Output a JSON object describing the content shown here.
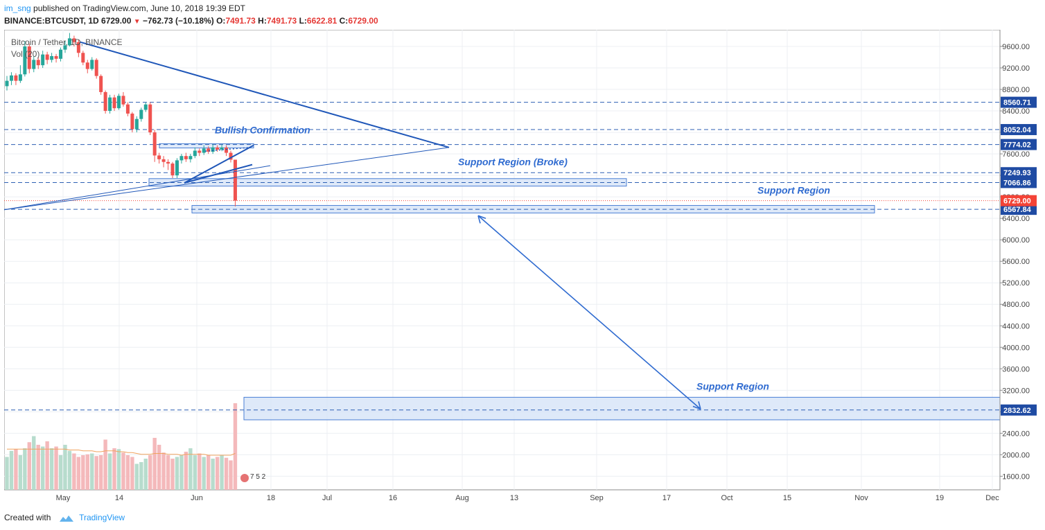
{
  "header": {
    "user": "im_sng",
    "published_text": "published on TradingView.com, June 10, 2018 19:39 EDT",
    "symbol": "BINANCE:BTCUSDT, 1D",
    "last": "6729.00",
    "change": "−762.73 (−10.18%)",
    "open_label": "O:",
    "open": "7491.73",
    "high_label": "H:",
    "high": "7491.73",
    "low_label": "L:",
    "low": "6622.81",
    "close_label": "C:",
    "close": "6729.00"
  },
  "legend": {
    "series": "Bitcoin / Tether, 1D, BINANCE",
    "volume": "Vol (20)"
  },
  "footer": {
    "created_with": "Created with",
    "brand": "TradingView"
  },
  "colors": {
    "up": "#26a69a",
    "down": "#ef5350",
    "vol_up": "#b7dccd",
    "vol_down": "#f4b9bb",
    "line": "#1e56b8",
    "annotation": "#2f6bd0",
    "zone_fill": "#d6e4f8",
    "zone_stroke": "#4a7fd4",
    "ma": "#f0a35e",
    "price_tag": "#f44336"
  },
  "chart_data": {
    "type": "candlestick",
    "title": "Bitcoin / Tether, 1D, BINANCE",
    "ylim": [
      1400,
      9900
    ],
    "y_ticks": [
      1600,
      2000,
      2400,
      2800,
      3200,
      3600,
      4000,
      4400,
      4800,
      5200,
      5600,
      6000,
      6400,
      6800,
      7200,
      7600,
      8000,
      8400,
      8800,
      9200,
      9600
    ],
    "x_ticks": [
      "May",
      "14",
      "Jun",
      "18",
      "Jul",
      "16",
      "Aug",
      "13",
      "Sep",
      "17",
      "Oct",
      "15",
      "Nov",
      "19",
      "Dec"
    ],
    "candles": [
      {
        "o": 8860,
        "c": 8960,
        "h": 9050,
        "l": 8780
      },
      {
        "o": 8960,
        "c": 9060,
        "h": 9120,
        "l": 8880
      },
      {
        "o": 9060,
        "c": 8960,
        "h": 9100,
        "l": 8880
      },
      {
        "o": 8960,
        "c": 9080,
        "h": 9250,
        "l": 8920
      },
      {
        "o": 9080,
        "c": 9600,
        "h": 9700,
        "l": 9040
      },
      {
        "o": 9600,
        "c": 9180,
        "h": 9650,
        "l": 9100
      },
      {
        "o": 9180,
        "c": 9350,
        "h": 9420,
        "l": 9120
      },
      {
        "o": 9350,
        "c": 9250,
        "h": 9400,
        "l": 9180
      },
      {
        "o": 9250,
        "c": 9450,
        "h": 9520,
        "l": 9200
      },
      {
        "o": 9450,
        "c": 9350,
        "h": 9500,
        "l": 9270
      },
      {
        "o": 9350,
        "c": 9420,
        "h": 9480,
        "l": 9300
      },
      {
        "o": 9420,
        "c": 9370,
        "h": 9460,
        "l": 9300
      },
      {
        "o": 9370,
        "c": 9540,
        "h": 9580,
        "l": 9320
      },
      {
        "o": 9540,
        "c": 9620,
        "h": 9700,
        "l": 9480
      },
      {
        "o": 9620,
        "c": 9750,
        "h": 9850,
        "l": 9600
      },
      {
        "o": 9750,
        "c": 9680,
        "h": 9800,
        "l": 9600
      },
      {
        "o": 9680,
        "c": 9480,
        "h": 9720,
        "l": 9400
      },
      {
        "o": 9480,
        "c": 9300,
        "h": 9520,
        "l": 9250
      },
      {
        "o": 9300,
        "c": 9180,
        "h": 9350,
        "l": 9100
      },
      {
        "o": 9180,
        "c": 9350,
        "h": 9400,
        "l": 9150
      },
      {
        "o": 9350,
        "c": 9050,
        "h": 9380,
        "l": 9000
      },
      {
        "o": 9050,
        "c": 8750,
        "h": 9080,
        "l": 8700
      },
      {
        "o": 8750,
        "c": 8400,
        "h": 8780,
        "l": 8350
      },
      {
        "o": 8400,
        "c": 8650,
        "h": 8700,
        "l": 8350
      },
      {
        "o": 8650,
        "c": 8450,
        "h": 8700,
        "l": 8400
      },
      {
        "o": 8450,
        "c": 8680,
        "h": 8720,
        "l": 8420
      },
      {
        "o": 8680,
        "c": 8520,
        "h": 8750,
        "l": 8480
      },
      {
        "o": 8520,
        "c": 8350,
        "h": 8560,
        "l": 8300
      },
      {
        "o": 8350,
        "c": 8060,
        "h": 8380,
        "l": 8000
      },
      {
        "o": 8060,
        "c": 8250,
        "h": 8300,
        "l": 8000
      },
      {
        "o": 8250,
        "c": 8420,
        "h": 8460,
        "l": 8200
      },
      {
        "o": 8420,
        "c": 8520,
        "h": 8560,
        "l": 8380
      },
      {
        "o": 8520,
        "c": 8000,
        "h": 8560,
        "l": 7950
      },
      {
        "o": 8000,
        "c": 7570,
        "h": 8050,
        "l": 7450
      },
      {
        "o": 7570,
        "c": 7500,
        "h": 7620,
        "l": 7420
      },
      {
        "o": 7500,
        "c": 7450,
        "h": 7560,
        "l": 7350
      },
      {
        "o": 7450,
        "c": 7420,
        "h": 7500,
        "l": 7300
      },
      {
        "o": 7420,
        "c": 7200,
        "h": 7450,
        "l": 7150
      },
      {
        "o": 7200,
        "c": 7480,
        "h": 7520,
        "l": 7150
      },
      {
        "o": 7480,
        "c": 7560,
        "h": 7600,
        "l": 7420
      },
      {
        "o": 7560,
        "c": 7500,
        "h": 7620,
        "l": 7450
      },
      {
        "o": 7500,
        "c": 7560,
        "h": 7600,
        "l": 7440
      },
      {
        "o": 7560,
        "c": 7660,
        "h": 7720,
        "l": 7520
      },
      {
        "o": 7660,
        "c": 7620,
        "h": 7700,
        "l": 7560
      },
      {
        "o": 7620,
        "c": 7700,
        "h": 7760,
        "l": 7580
      },
      {
        "o": 7700,
        "c": 7640,
        "h": 7740,
        "l": 7600
      },
      {
        "o": 7640,
        "c": 7720,
        "h": 7780,
        "l": 7600
      },
      {
        "o": 7720,
        "c": 7680,
        "h": 7760,
        "l": 7640
      },
      {
        "o": 7680,
        "c": 7720,
        "h": 7770,
        "l": 7650
      },
      {
        "o": 7720,
        "c": 7620,
        "h": 7760,
        "l": 7560
      },
      {
        "o": 7620,
        "c": 7492,
        "h": 7660,
        "l": 7440
      },
      {
        "o": 7491.73,
        "c": 6729.0,
        "h": 7491.73,
        "l": 6622.81
      }
    ],
    "volume": [
      0.38,
      0.45,
      0.47,
      0.4,
      0.48,
      0.55,
      0.62,
      0.52,
      0.5,
      0.56,
      0.48,
      0.5,
      0.4,
      0.52,
      0.45,
      0.42,
      0.38,
      0.4,
      0.41,
      0.42,
      0.39,
      0.4,
      0.58,
      0.42,
      0.48,
      0.47,
      0.43,
      0.4,
      0.38,
      0.3,
      0.32,
      0.36,
      0.4,
      0.6,
      0.52,
      0.43,
      0.4,
      0.36,
      0.38,
      0.4,
      0.44,
      0.48,
      0.4,
      0.42,
      0.38,
      0.4,
      0.36,
      0.38,
      0.4,
      0.37,
      0.34,
      1.0
    ],
    "volume_ma": [
      0.47,
      0.47,
      0.47,
      0.47,
      0.47,
      0.47,
      0.47,
      0.47,
      0.47,
      0.47,
      0.47,
      0.47,
      0.47,
      0.47,
      0.46,
      0.46,
      0.46,
      0.45,
      0.45,
      0.45,
      0.44,
      0.44,
      0.45,
      0.45,
      0.45,
      0.44,
      0.44,
      0.43,
      0.43,
      0.42,
      0.41,
      0.41,
      0.41,
      0.42,
      0.42,
      0.42,
      0.41,
      0.41,
      0.41,
      0.4,
      0.41,
      0.41,
      0.41,
      0.41,
      0.41,
      0.4,
      0.4,
      0.4,
      0.4,
      0.4,
      0.4,
      0.42
    ],
    "horizontal_levels": [
      8560.71,
      8052.04,
      7774.02,
      7249.93,
      7066.86,
      6567.84,
      2832.62
    ],
    "current_price": 6729.0,
    "annotations": [
      {
        "text": "Bullish Confirmation"
      },
      {
        "text": "Support Region (Broke)"
      },
      {
        "text": "Support Region"
      },
      {
        "text": "Support Region"
      }
    ],
    "zones": [
      {
        "from": 7000,
        "to": 7140
      },
      {
        "from": 6500,
        "to": 6640
      },
      {
        "from": 2650,
        "to": 3070
      }
    ],
    "legend_placement": "top-left",
    "grid": true
  }
}
